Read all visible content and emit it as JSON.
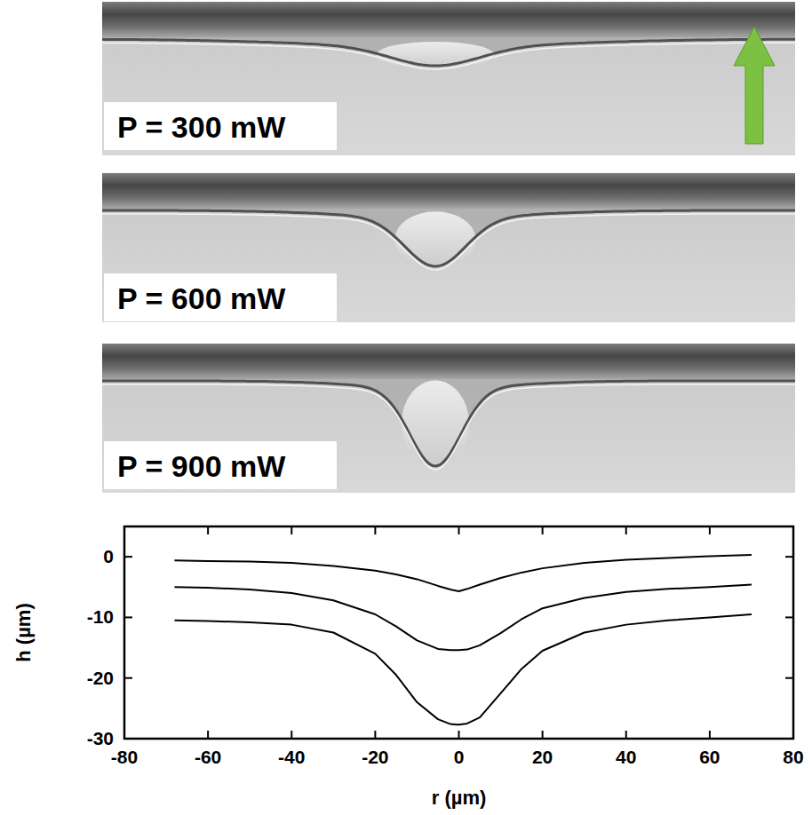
{
  "panels": [
    {
      "label": "P = 300 mW"
    },
    {
      "label": "P = 600 mW"
    },
    {
      "label": "P = 900 mW"
    }
  ],
  "chart_data": {
    "type": "line",
    "x_label": "r (µm)",
    "y_label": "h (µm)",
    "x": [
      -68,
      -60,
      -50,
      -40,
      -30,
      -20,
      -15,
      -10,
      -5,
      -2,
      0,
      2,
      5,
      10,
      15,
      20,
      30,
      40,
      50,
      60,
      70
    ],
    "series": [
      {
        "color": "#000000",
        "values": [
          -0.6,
          -0.7,
          -0.8,
          -1.0,
          -1.5,
          -2.3,
          -2.9,
          -3.7,
          -4.8,
          -5.4,
          -5.7,
          -5.3,
          -4.6,
          -3.5,
          -2.6,
          -1.9,
          -1.0,
          -0.5,
          -0.2,
          0.1,
          0.3
        ]
      },
      {
        "color": "#000000",
        "values": [
          -5.0,
          -5.1,
          -5.4,
          -6.0,
          -7.2,
          -9.5,
          -11.5,
          -13.8,
          -15.2,
          -15.4,
          -15.4,
          -15.3,
          -14.6,
          -12.6,
          -10.3,
          -8.5,
          -6.8,
          -5.8,
          -5.3,
          -5.0,
          -4.6
        ]
      },
      {
        "color": "#000000",
        "values": [
          -10.5,
          -10.6,
          -10.8,
          -11.2,
          -12.5,
          -16.0,
          -19.5,
          -24.0,
          -26.8,
          -27.6,
          -27.7,
          -27.5,
          -26.5,
          -22.5,
          -18.5,
          -15.5,
          -12.5,
          -11.2,
          -10.5,
          -10.0,
          -9.5
        ]
      }
    ],
    "xlim": [
      -80,
      80
    ],
    "xticks": [
      -80,
      -60,
      -40,
      -20,
      0,
      20,
      40,
      60,
      80
    ],
    "ylim": [
      -30,
      5
    ],
    "yticks": [
      -30,
      -20,
      -10,
      0
    ],
    "grid": false
  }
}
